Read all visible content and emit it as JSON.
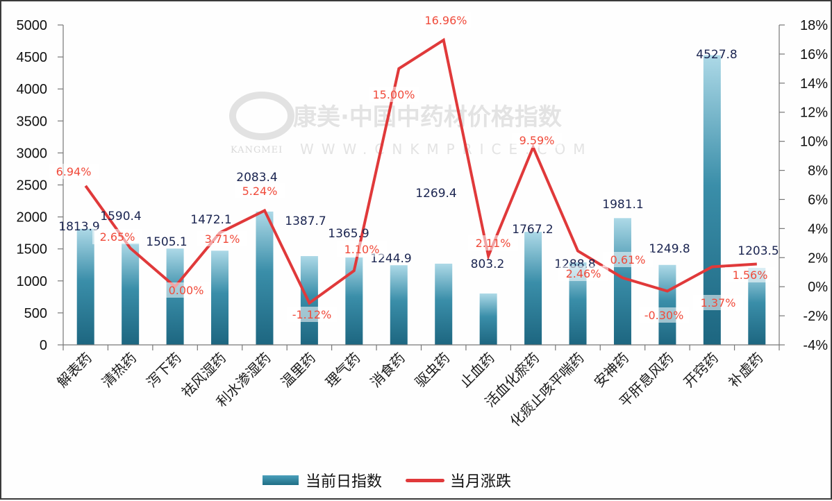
{
  "chart_data": {
    "type": "bar+line",
    "title": "",
    "watermark": {
      "main": "康美·中国中药材价格指数",
      "sub": "WWW.CNKMPRICE.COM",
      "brand": "KANGMEI"
    },
    "categories": [
      "解表药",
      "清热药",
      "泻下药",
      "祛风湿药",
      "利水渗湿药",
      "温里药",
      "理气药",
      "消食药",
      "驱虫药",
      "止血药",
      "活血化瘀药",
      "化痰止咳平喘药",
      "安神药",
      "平肝息风药",
      "开窍药",
      "补虚药"
    ],
    "series": [
      {
        "name": "当前日指数",
        "type": "bar",
        "axis": "left",
        "color_top": "#a8d8e6",
        "color_bottom": "#1f6e85",
        "values": [
          1813.9,
          1590.4,
          1505.1,
          1472.1,
          2083.4,
          1387.7,
          1365.9,
          1244.9,
          1269.4,
          803.2,
          1767.2,
          1288.8,
          1981.1,
          1249.8,
          4527.8,
          1203.5
        ],
        "labels": [
          "1813.9",
          "1590.4",
          "1505.1",
          "1472.1",
          "2083.4",
          "1387.7",
          "1365.9",
          "1244.9",
          "1269.4",
          "803.2",
          "1767.2",
          "1288.8",
          "1981.1",
          "1249.8",
          "4527.8",
          "1203.5"
        ]
      },
      {
        "name": "当月涨跌",
        "type": "line",
        "axis": "right",
        "color": "#e0393a",
        "values": [
          6.94,
          2.65,
          0.0,
          3.71,
          5.24,
          -1.12,
          1.1,
          15.0,
          16.96,
          2.11,
          9.59,
          2.46,
          0.61,
          -0.3,
          1.37,
          1.56
        ],
        "labels": [
          "6.94%",
          "2.65%",
          "0.00%",
          "3.71%",
          "5.24%",
          "-1.12%",
          "1.10%",
          "15.00%",
          "16.96%",
          "2.11%",
          "9.59%",
          "2.46%",
          "0.61%",
          "-0.30%",
          "1.37%",
          "1.56%"
        ]
      }
    ],
    "y_left": {
      "ylim": [
        0,
        5000
      ],
      "ticks": [
        "0",
        "500",
        "1000",
        "1500",
        "2000",
        "2500",
        "3000",
        "3500",
        "4000",
        "4500",
        "5000"
      ]
    },
    "y_right": {
      "ylim": [
        -4,
        18
      ],
      "ticks": [
        "-4%",
        "-2%",
        "0%",
        "2%",
        "4%",
        "6%",
        "8%",
        "10%",
        "12%",
        "14%",
        "16%",
        "18%"
      ]
    },
    "xlabel": "",
    "ylabel": "",
    "grid": false,
    "legend_position": "bottom"
  },
  "legend": {
    "bar_label": "当前日指数",
    "line_label": "当月涨跌"
  }
}
